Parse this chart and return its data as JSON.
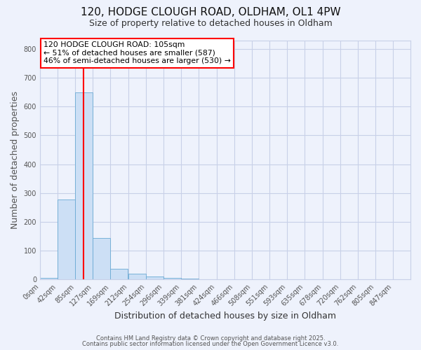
{
  "title1": "120, HODGE CLOUGH ROAD, OLDHAM, OL1 4PW",
  "title2": "Size of property relative to detached houses in Oldham",
  "xlabel": "Distribution of detached houses by size in Oldham",
  "ylabel": "Number of detached properties",
  "bin_labels": [
    "0sqm",
    "42sqm",
    "85sqm",
    "127sqm",
    "169sqm",
    "212sqm",
    "254sqm",
    "296sqm",
    "339sqm",
    "381sqm",
    "424sqm",
    "466sqm",
    "508sqm",
    "551sqm",
    "593sqm",
    "635sqm",
    "678sqm",
    "720sqm",
    "762sqm",
    "805sqm",
    "847sqm"
  ],
  "bin_edges": [
    0,
    42,
    85,
    127,
    169,
    212,
    254,
    296,
    339,
    381,
    424,
    466,
    508,
    551,
    593,
    635,
    678,
    720,
    762,
    805,
    847
  ],
  "bar_heights": [
    5,
    278,
    650,
    143,
    37,
    20,
    10,
    5,
    2,
    0,
    0,
    0,
    0,
    0,
    0,
    0,
    0,
    0,
    0,
    0,
    0
  ],
  "bar_color": "#ccdff5",
  "bar_edge_color": "#6aaad4",
  "vline_x": 105,
  "vline_color": "red",
  "ylim": [
    0,
    830
  ],
  "annotation_line1": "120 HODGE CLOUGH ROAD: 105sqm",
  "annotation_line2": "← 51% of detached houses are smaller (587)",
  "annotation_line3": "46% of semi-detached houses are larger (530) →",
  "annotation_box_color": "white",
  "annotation_box_edge": "red",
  "footer1": "Contains HM Land Registry data © Crown copyright and database right 2025.",
  "footer2": "Contains public sector information licensed under the Open Government Licence v3.0.",
  "background_color": "#eef2fc",
  "grid_color": "#c8d0e8",
  "title_fontsize": 11,
  "subtitle_fontsize": 9,
  "axis_label_fontsize": 9,
  "tick_fontsize": 7,
  "footer_fontsize": 6
}
